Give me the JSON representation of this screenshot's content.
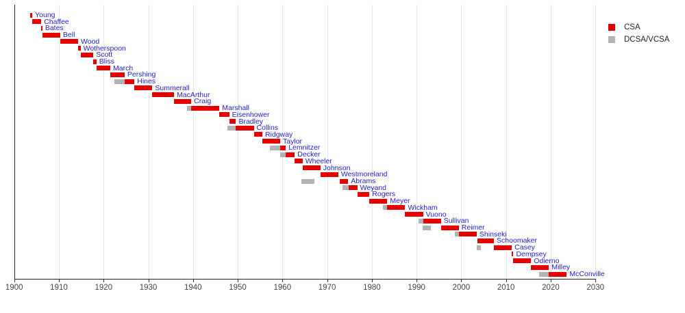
{
  "chart_data": {
    "type": "bar",
    "subtype": "gantt-timeline",
    "title": "",
    "xlabel": "",
    "ylabel": "",
    "x_axis": {
      "min": 1900,
      "max": 2030,
      "tick_interval": 10,
      "tick_labels": [
        "1900",
        "1910",
        "1920",
        "1930",
        "1940",
        "1950",
        "1960",
        "1970",
        "1980",
        "1990",
        "2000",
        "2010",
        "2020",
        "2030"
      ],
      "grid": true
    },
    "legend": {
      "position": "top-right",
      "items": [
        {
          "label": "CSA",
          "color": "#e60000"
        },
        {
          "label": "DCSA/VCSA",
          "color": "#b3b3b3"
        }
      ]
    },
    "colors": {
      "csa": "#e60000",
      "vcsa": "#b3b3b3",
      "name_label": "#1e1ec8",
      "axis": "#222222",
      "grid": "#e7e7e7",
      "tick_label": "#454545"
    },
    "rows": [
      {
        "name": "Young",
        "csa": [
          1903.6,
          1904.05
        ],
        "vcsa": null
      },
      {
        "name": "Chaffee",
        "csa": [
          1904.05,
          1906.05
        ],
        "vcsa": null
      },
      {
        "name": "Bates",
        "csa": [
          1906.05,
          1906.3
        ],
        "vcsa": null
      },
      {
        "name": "Bell",
        "csa": [
          1906.3,
          1910.3
        ],
        "vcsa": null
      },
      {
        "name": "Wood",
        "csa": [
          1910.3,
          1914.3
        ],
        "vcsa": null
      },
      {
        "name": "Wotherspoon",
        "csa": [
          1914.3,
          1914.85
        ],
        "vcsa": null
      },
      {
        "name": "Scott",
        "csa": [
          1914.85,
          1917.7
        ],
        "vcsa": null
      },
      {
        "name": "Bliss",
        "csa": [
          1917.7,
          1918.4
        ],
        "vcsa": null
      },
      {
        "name": "March",
        "csa": [
          1918.4,
          1921.5
        ],
        "vcsa": null
      },
      {
        "name": "Pershing",
        "csa": [
          1921.5,
          1924.7
        ],
        "vcsa": null
      },
      {
        "name": "Hines",
        "csa": [
          1924.7,
          1926.9
        ],
        "vcsa": [
          1922.4,
          1924.7
        ]
      },
      {
        "name": "Summerall",
        "csa": [
          1926.9,
          1930.9
        ],
        "vcsa": null
      },
      {
        "name": "MacArthur",
        "csa": [
          1930.9,
          1935.75
        ],
        "vcsa": null
      },
      {
        "name": "Craig",
        "csa": [
          1935.75,
          1939.6
        ],
        "vcsa": null
      },
      {
        "name": "Marshall",
        "csa": [
          1939.65,
          1945.9
        ],
        "vcsa": [
          1938.6,
          1939.65
        ]
      },
      {
        "name": "Eisenhower",
        "csa": [
          1945.9,
          1948.1
        ],
        "vcsa": null
      },
      {
        "name": "Bradley",
        "csa": [
          1948.1,
          1949.6
        ],
        "vcsa": null
      },
      {
        "name": "Collins",
        "csa": [
          1949.6,
          1953.6
        ],
        "vcsa": [
          1947.7,
          1949.6
        ]
      },
      {
        "name": "Ridgway",
        "csa": [
          1953.6,
          1955.5
        ],
        "vcsa": null
      },
      {
        "name": "Taylor",
        "csa": [
          1955.5,
          1959.5
        ],
        "vcsa": null
      },
      {
        "name": "Lemnitzer",
        "csa": [
          1959.5,
          1960.75
        ],
        "vcsa": [
          1957.2,
          1959.5
        ]
      },
      {
        "name": "Decker",
        "csa": [
          1960.75,
          1962.75
        ],
        "vcsa": [
          1959.5,
          1960.75
        ]
      },
      {
        "name": "Wheeler",
        "csa": [
          1962.75,
          1964.5
        ],
        "vcsa": null
      },
      {
        "name": "Johnson",
        "csa": [
          1964.5,
          1968.5
        ],
        "vcsa": null
      },
      {
        "name": "Westmoreland",
        "csa": [
          1968.5,
          1972.5
        ],
        "vcsa": null
      },
      {
        "name": "Abrams",
        "csa": [
          1972.8,
          1974.7
        ],
        "vcsa": [
          1964.3,
          1967.2
        ]
      },
      {
        "name": "Weyand",
        "csa": [
          1974.8,
          1976.75
        ],
        "vcsa": [
          1973.4,
          1974.8
        ]
      },
      {
        "name": "Rogers",
        "csa": [
          1976.75,
          1979.45
        ],
        "vcsa": null
      },
      {
        "name": "Meyer",
        "csa": [
          1979.45,
          1983.45
        ],
        "vcsa": null
      },
      {
        "name": "Wickham",
        "csa": [
          1983.45,
          1987.45
        ],
        "vcsa": [
          1982.4,
          1983.45
        ]
      },
      {
        "name": "Vuono",
        "csa": [
          1987.45,
          1991.45
        ],
        "vcsa": null
      },
      {
        "name": "Sullivan",
        "csa": [
          1991.45,
          1995.45
        ],
        "vcsa": [
          1990.4,
          1991.45
        ]
      },
      {
        "name": "Reimer",
        "csa": [
          1995.45,
          1999.45
        ],
        "vcsa": [
          1991.4,
          1993.2
        ]
      },
      {
        "name": "Shinseki",
        "csa": [
          1999.45,
          2003.45
        ],
        "vcsa": [
          1998.5,
          1999.45
        ]
      },
      {
        "name": "Schoomaker",
        "csa": [
          2003.6,
          2007.3
        ],
        "vcsa": null
      },
      {
        "name": "Casey",
        "csa": [
          2007.3,
          2011.3
        ],
        "vcsa": [
          2003.5,
          2004.4
        ]
      },
      {
        "name": "Dempsey",
        "csa": [
          2011.3,
          2011.65
        ],
        "vcsa": null
      },
      {
        "name": "Odierno",
        "csa": [
          2011.65,
          2015.6
        ],
        "vcsa": null
      },
      {
        "name": "Milley",
        "csa": [
          2015.6,
          2019.6
        ],
        "vcsa": null
      },
      {
        "name": "McConville",
        "csa": [
          2019.6,
          2023.6
        ],
        "vcsa": [
          2017.4,
          2019.6
        ]
      }
    ]
  }
}
